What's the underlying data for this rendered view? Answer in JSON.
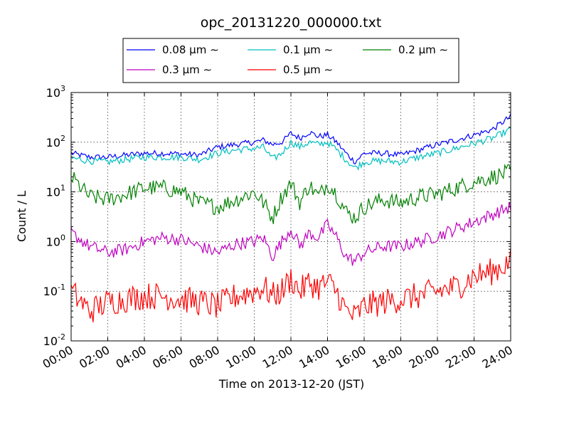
{
  "chart_data": {
    "type": "line",
    "title": "opc_20131220_000000.txt",
    "xlabel": "Time on 2013-12-20 (JST)",
    "ylabel": "Count / L",
    "y_scale": "log",
    "ylim": [
      0.01,
      1000
    ],
    "xlim": [
      "00:00",
      "24:00"
    ],
    "grid": true,
    "legend_position": "top-center, above plot, 3 columns",
    "x_tick_labels": [
      "00:00",
      "02:00",
      "04:00",
      "06:00",
      "08:00",
      "10:00",
      "12:00",
      "14:00",
      "16:00",
      "18:00",
      "20:00",
      "22:00",
      "24:00"
    ],
    "y_tick_labels": [
      {
        "base": "10",
        "exp": "-2",
        "value": 0.01
      },
      {
        "base": "10",
        "exp": "-1",
        "value": 0.1
      },
      {
        "base": "10",
        "exp": "0",
        "value": 1
      },
      {
        "base": "10",
        "exp": "1",
        "value": 10
      },
      {
        "base": "10",
        "exp": "2",
        "value": 100
      },
      {
        "base": "10",
        "exp": "3",
        "value": 1000
      }
    ],
    "x": [
      "00:00",
      "01:00",
      "02:00",
      "03:00",
      "04:00",
      "05:00",
      "06:00",
      "07:00",
      "08:00",
      "09:00",
      "10:00",
      "10:30",
      "11:00",
      "11:30",
      "12:00",
      "12:30",
      "13:00",
      "13:30",
      "14:00",
      "14:30",
      "15:00",
      "15:30",
      "16:00",
      "17:00",
      "18:00",
      "19:00",
      "20:00",
      "21:00",
      "22:00",
      "23:00",
      "24:00"
    ],
    "series": [
      {
        "name": "0.08 μm ∼",
        "color": "#0000ff",
        "values": [
          60,
          50,
          50,
          55,
          60,
          60,
          58,
          55,
          80,
          90,
          100,
          110,
          90,
          100,
          150,
          120,
          160,
          130,
          140,
          100,
          60,
          40,
          60,
          60,
          55,
          70,
          90,
          110,
          140,
          180,
          330
        ]
      },
      {
        "name": "0.1 μm ∼",
        "color": "#00bfbf",
        "values": [
          48,
          42,
          40,
          45,
          50,
          50,
          50,
          45,
          60,
          70,
          75,
          80,
          45,
          60,
          100,
          80,
          100,
          90,
          100,
          70,
          45,
          30,
          40,
          42,
          40,
          50,
          60,
          75,
          95,
          120,
          180
        ]
      },
      {
        "name": "0.2 μm ∼",
        "color": "#008000",
        "values": [
          20,
          8,
          7,
          9,
          12,
          12,
          10,
          6,
          5,
          7,
          10,
          6,
          3,
          8,
          15,
          6,
          14,
          8,
          15,
          9,
          4,
          3,
          5,
          7,
          6,
          8,
          9,
          12,
          16,
          20,
          25
        ]
      },
      {
        "name": "0.3 μm ∼",
        "color": "#bf00bf",
        "values": [
          1.5,
          0.8,
          0.6,
          0.7,
          1.0,
          1.2,
          1.1,
          0.8,
          0.6,
          0.9,
          1.0,
          1.2,
          0.5,
          1.0,
          1.8,
          0.8,
          1.5,
          1.2,
          2.2,
          1.2,
          0.5,
          0.4,
          0.6,
          0.8,
          0.8,
          1.0,
          1.3,
          1.8,
          2.5,
          3.5,
          5.0
        ]
      },
      {
        "name": "0.5 μm ∼",
        "color": "#ff0000",
        "values": [
          0.1,
          0.04,
          0.06,
          0.07,
          0.08,
          0.08,
          0.07,
          0.06,
          0.05,
          0.08,
          0.1,
          0.12,
          0.08,
          0.1,
          0.18,
          0.1,
          0.15,
          0.12,
          0.15,
          0.1,
          0.04,
          0.03,
          0.05,
          0.06,
          0.07,
          0.08,
          0.1,
          0.12,
          0.2,
          0.25,
          0.4
        ]
      }
    ]
  }
}
